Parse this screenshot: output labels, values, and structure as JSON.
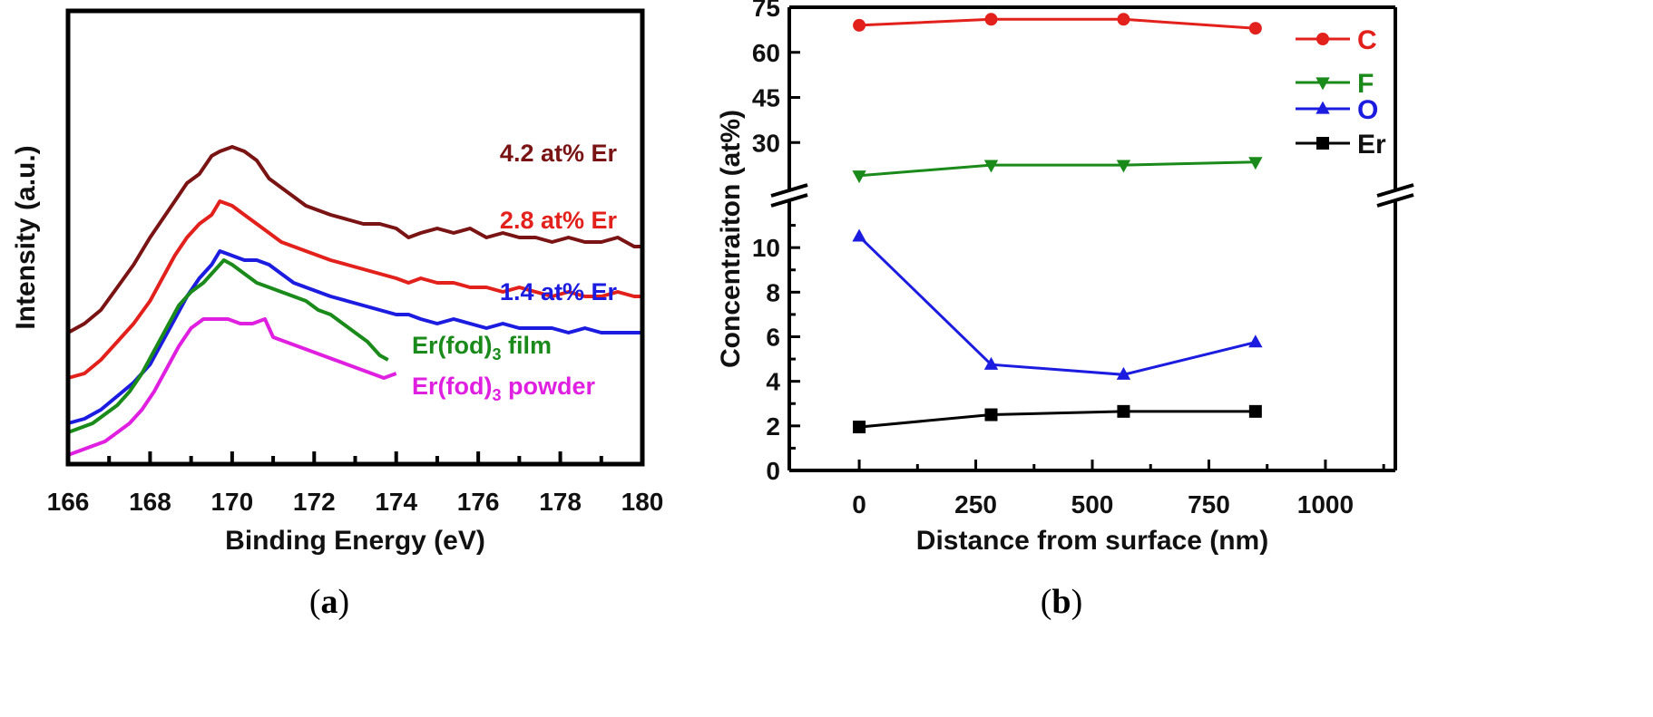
{
  "panels": {
    "a": {
      "label_open": "(",
      "label_letter": "a",
      "label_close": ")"
    },
    "b": {
      "label_open": "(",
      "label_letter": "b",
      "label_close": ")"
    }
  },
  "chart_data": [
    {
      "type": "line",
      "panel": "a",
      "xlabel": "Binding Energy (eV)",
      "ylabel": "Intensity (a.u.)",
      "xlim": [
        166,
        180
      ],
      "xticks": [
        166,
        168,
        170,
        172,
        174,
        176,
        178,
        180
      ],
      "yticks_shown": false,
      "series": [
        {
          "name": "4.2 at% Er",
          "color": "#7a1414",
          "x": [
            166.0,
            166.4,
            166.8,
            167.2,
            167.6,
            168.0,
            168.3,
            168.6,
            168.9,
            169.2,
            169.5,
            169.7,
            170.0,
            170.3,
            170.6,
            170.9,
            171.2,
            171.5,
            171.8,
            172.1,
            172.4,
            172.8,
            173.2,
            173.6,
            174.0,
            174.3,
            174.6,
            175.0,
            175.4,
            175.8,
            176.2,
            176.6,
            177.0,
            177.4,
            177.8,
            178.2,
            178.6,
            179.0,
            179.4,
            179.8,
            180.0
          ],
          "y": [
            0.29,
            0.31,
            0.34,
            0.39,
            0.44,
            0.5,
            0.54,
            0.58,
            0.62,
            0.64,
            0.68,
            0.69,
            0.7,
            0.69,
            0.67,
            0.63,
            0.61,
            0.59,
            0.57,
            0.56,
            0.55,
            0.54,
            0.53,
            0.53,
            0.52,
            0.5,
            0.51,
            0.52,
            0.51,
            0.52,
            0.5,
            0.51,
            0.5,
            0.5,
            0.49,
            0.5,
            0.49,
            0.49,
            0.5,
            0.48,
            0.48
          ]
        },
        {
          "name": "2.8 at% Er",
          "color": "#e3211c",
          "x": [
            166.0,
            166.4,
            166.8,
            167.2,
            167.6,
            168.0,
            168.3,
            168.6,
            168.9,
            169.2,
            169.5,
            169.7,
            170.0,
            170.3,
            170.6,
            170.9,
            171.2,
            171.5,
            171.8,
            172.1,
            172.4,
            172.8,
            173.2,
            173.6,
            174.0,
            174.3,
            174.6,
            175.0,
            175.4,
            175.8,
            176.2,
            176.6,
            177.0,
            177.4,
            177.8,
            178.2,
            178.6,
            179.0,
            179.4,
            179.8,
            180.0
          ],
          "y": [
            0.19,
            0.2,
            0.23,
            0.27,
            0.31,
            0.36,
            0.41,
            0.46,
            0.5,
            0.53,
            0.55,
            0.58,
            0.57,
            0.55,
            0.53,
            0.51,
            0.49,
            0.48,
            0.47,
            0.46,
            0.45,
            0.44,
            0.43,
            0.42,
            0.41,
            0.4,
            0.41,
            0.4,
            0.4,
            0.39,
            0.39,
            0.38,
            0.39,
            0.38,
            0.37,
            0.38,
            0.37,
            0.37,
            0.38,
            0.37,
            0.37
          ]
        },
        {
          "name": "1.4 at% Er",
          "color": "#1c1ce0",
          "x": [
            166.0,
            166.4,
            166.8,
            167.2,
            167.6,
            168.0,
            168.3,
            168.6,
            168.9,
            169.2,
            169.5,
            169.7,
            170.0,
            170.3,
            170.6,
            170.9,
            171.2,
            171.5,
            171.8,
            172.1,
            172.4,
            172.8,
            173.2,
            173.6,
            174.0,
            174.3,
            174.6,
            175.0,
            175.4,
            175.8,
            176.2,
            176.6,
            177.0,
            177.4,
            177.8,
            178.2,
            178.6,
            179.0,
            179.4,
            179.8,
            180.0
          ],
          "y": [
            0.09,
            0.1,
            0.12,
            0.15,
            0.18,
            0.22,
            0.27,
            0.32,
            0.37,
            0.41,
            0.44,
            0.47,
            0.46,
            0.45,
            0.45,
            0.44,
            0.42,
            0.4,
            0.39,
            0.38,
            0.37,
            0.36,
            0.35,
            0.34,
            0.33,
            0.33,
            0.32,
            0.31,
            0.32,
            0.31,
            0.3,
            0.31,
            0.3,
            0.3,
            0.3,
            0.29,
            0.3,
            0.29,
            0.29,
            0.29,
            0.29
          ]
        },
        {
          "name": "Er(fod)3 film",
          "color": "#1a8a1a",
          "x": [
            166.0,
            166.3,
            166.6,
            166.9,
            167.2,
            167.5,
            167.8,
            168.1,
            168.4,
            168.7,
            169.0,
            169.3,
            169.6,
            169.8,
            170.0,
            170.3,
            170.6,
            170.9,
            171.2,
            171.5,
            171.8,
            172.1,
            172.4,
            172.7,
            173.0,
            173.3,
            173.6,
            173.8
          ],
          "y": [
            0.07,
            0.08,
            0.09,
            0.11,
            0.13,
            0.16,
            0.2,
            0.25,
            0.3,
            0.35,
            0.38,
            0.4,
            0.43,
            0.45,
            0.44,
            0.42,
            0.4,
            0.39,
            0.38,
            0.37,
            0.36,
            0.34,
            0.33,
            0.31,
            0.29,
            0.27,
            0.24,
            0.23
          ]
        },
        {
          "name": "Er(fod)3 powder",
          "color": "#e020e0",
          "x": [
            166.0,
            166.3,
            166.6,
            166.9,
            167.2,
            167.5,
            167.8,
            168.1,
            168.4,
            168.7,
            169.0,
            169.3,
            169.6,
            169.9,
            170.2,
            170.5,
            170.8,
            171.0,
            171.3,
            171.6,
            171.9,
            172.2,
            172.5,
            172.8,
            173.1,
            173.4,
            173.7,
            174.0
          ],
          "y": [
            0.02,
            0.03,
            0.04,
            0.05,
            0.07,
            0.09,
            0.12,
            0.16,
            0.21,
            0.26,
            0.3,
            0.32,
            0.32,
            0.32,
            0.31,
            0.31,
            0.32,
            0.28,
            0.27,
            0.26,
            0.25,
            0.24,
            0.23,
            0.22,
            0.21,
            0.2,
            0.19,
            0.2
          ]
        }
      ],
      "series_labels": [
        {
          "pre": "4.2 at% Er",
          "sub": "",
          "post": ""
        },
        {
          "pre": "2.8 at% Er",
          "sub": "",
          "post": ""
        },
        {
          "pre": "1.4 at% Er",
          "sub": "",
          "post": ""
        },
        {
          "pre": "Er(fod)",
          "sub": "3",
          "post": " film"
        },
        {
          "pre": "Er(fod)",
          "sub": "3",
          "post": " powder"
        }
      ]
    },
    {
      "type": "line",
      "panel": "b",
      "xlabel": "Distance from surface (nm)",
      "ylabel": "Concentraiton (at%)",
      "xlim": [
        -150,
        1150
      ],
      "xticks": [
        0,
        250,
        500,
        750,
        1000
      ],
      "y_broken": true,
      "ylim_lower": [
        0,
        12
      ],
      "yticks_lower": [
        0,
        2,
        4,
        6,
        8,
        10
      ],
      "ylim_upper": [
        15,
        75
      ],
      "yticks_upper": [
        30,
        45,
        60,
        75
      ],
      "series": [
        {
          "name": "C",
          "marker": "circle",
          "color": "#e3211c",
          "x": [
            0,
            283,
            567,
            850
          ],
          "y": [
            69,
            71,
            71,
            68
          ]
        },
        {
          "name": "F",
          "marker": "triangle-down",
          "color": "#1a8a1a",
          "x": [
            0,
            283,
            567,
            850
          ],
          "y": [
            19,
            22.5,
            22.5,
            23.5
          ]
        },
        {
          "name": "O",
          "marker": "triangle-up",
          "color": "#1c1ce0",
          "x": [
            0,
            283,
            567,
            850
          ],
          "y": [
            10.5,
            4.75,
            4.3,
            5.75
          ]
        },
        {
          "name": "Er",
          "marker": "square",
          "color": "#000000",
          "x": [
            0,
            283,
            567,
            850
          ],
          "y": [
            1.95,
            2.5,
            2.65,
            2.65
          ]
        }
      ],
      "legend_position": "top-right"
    }
  ]
}
